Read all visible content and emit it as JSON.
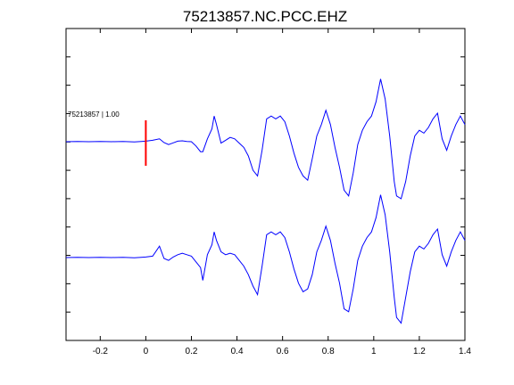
{
  "chart_data": {
    "type": "line",
    "title": "75213857.NC.PCC.EHZ",
    "xlabel": "",
    "ylabel": "",
    "xlim": [
      -0.35,
      1.4
    ],
    "x_ticks": [
      "-0.2",
      "0",
      "0.2",
      "0.4",
      "0.6",
      "0.8",
      "1",
      "1.2",
      "1.4"
    ],
    "x_tick_values": [
      -0.2,
      0,
      0.2,
      0.4,
      0.6,
      0.8,
      1.0,
      1.2,
      1.4
    ],
    "grid": false,
    "trace_label": "75213857 | 1.00",
    "pick_time": 0,
    "line_color": "#0000ff",
    "pick_color": "#ff0000",
    "traces": [
      {
        "x": [
          -0.35,
          -0.3,
          -0.25,
          -0.2,
          -0.15,
          -0.1,
          -0.05,
          -0.02,
          0,
          0.03,
          0.06,
          0.08,
          0.1,
          0.12,
          0.14,
          0.16,
          0.18,
          0.2,
          0.22,
          0.24,
          0.25,
          0.27,
          0.29,
          0.3,
          0.31,
          0.33,
          0.35,
          0.37,
          0.39,
          0.41,
          0.43,
          0.45,
          0.47,
          0.49,
          0.51,
          0.53,
          0.55,
          0.57,
          0.59,
          0.61,
          0.63,
          0.65,
          0.67,
          0.69,
          0.71,
          0.73,
          0.75,
          0.77,
          0.79,
          0.81,
          0.83,
          0.85,
          0.87,
          0.89,
          0.91,
          0.93,
          0.95,
          0.97,
          0.99,
          1.01,
          1.03,
          1.05,
          1.07,
          1.09,
          1.1,
          1.12,
          1.14,
          1.16,
          1.18,
          1.2,
          1.22,
          1.24,
          1.26,
          1.28,
          1.3,
          1.32,
          1.34,
          1.36,
          1.38,
          1.4
        ],
        "y": [
          0,
          0.01,
          0,
          0.01,
          0,
          0.01,
          -0.01,
          0.01,
          0.02,
          0.05,
          0.1,
          -0.03,
          -0.1,
          -0.04,
          0.02,
          0.03,
          0.01,
          0,
          -0.15,
          -0.35,
          -0.35,
          0.1,
          0.45,
          0.9,
          0.6,
          -0.05,
          0.05,
          0.15,
          0.1,
          -0.05,
          -0.2,
          -0.5,
          -1.0,
          -1.2,
          -0.3,
          0.8,
          0.9,
          0.8,
          0.9,
          0.7,
          0.2,
          -0.4,
          -0.9,
          -1.2,
          -1.35,
          -0.6,
          0.2,
          0.6,
          1.1,
          0.6,
          -0.2,
          -0.9,
          -1.7,
          -1.9,
          -1.1,
          -0.1,
          0.4,
          0.7,
          0.9,
          1.4,
          2.2,
          1.5,
          0.2,
          -1.4,
          -1.9,
          -2.0,
          -1.4,
          -0.5,
          0.2,
          0.4,
          0.3,
          0.5,
          0.8,
          1.0,
          0.1,
          -0.3,
          0.2,
          0.6,
          0.9,
          0.6
        ]
      },
      {
        "x": [
          -0.35,
          -0.3,
          -0.25,
          -0.2,
          -0.15,
          -0.1,
          -0.05,
          -0.02,
          0,
          0.03,
          0.06,
          0.08,
          0.1,
          0.12,
          0.14,
          0.16,
          0.18,
          0.2,
          0.22,
          0.24,
          0.25,
          0.27,
          0.29,
          0.3,
          0.31,
          0.33,
          0.35,
          0.37,
          0.39,
          0.41,
          0.43,
          0.45,
          0.47,
          0.49,
          0.51,
          0.53,
          0.55,
          0.57,
          0.59,
          0.61,
          0.63,
          0.65,
          0.67,
          0.69,
          0.71,
          0.73,
          0.75,
          0.77,
          0.79,
          0.81,
          0.83,
          0.85,
          0.87,
          0.89,
          0.91,
          0.93,
          0.95,
          0.97,
          0.99,
          1.01,
          1.03,
          1.05,
          1.07,
          1.09,
          1.1,
          1.12,
          1.14,
          1.16,
          1.18,
          1.2,
          1.22,
          1.24,
          1.26,
          1.28,
          1.3,
          1.32,
          1.34,
          1.36,
          1.38,
          1.4
        ],
        "y": [
          0,
          0.01,
          0,
          0.01,
          0,
          0.01,
          -0.01,
          0.01,
          0.02,
          0.05,
          0.4,
          -0.03,
          -0.1,
          0.02,
          0.1,
          0.15,
          0.1,
          0.05,
          -0.15,
          -0.35,
          -0.8,
          0.1,
          0.45,
          0.9,
          0.6,
          0.2,
          0.1,
          0.15,
          0.1,
          -0.1,
          -0.3,
          -0.6,
          -1.0,
          -1.3,
          -0.3,
          0.8,
          0.9,
          0.8,
          0.9,
          0.7,
          0.2,
          -0.4,
          -0.9,
          -1.2,
          -1.1,
          -0.6,
          0.2,
          0.6,
          1.1,
          0.6,
          -0.2,
          -0.9,
          -1.8,
          -1.9,
          -1.1,
          -0.1,
          0.4,
          0.7,
          0.9,
          1.4,
          2.2,
          1.5,
          0.2,
          -1.4,
          -2.1,
          -2.3,
          -1.4,
          -0.5,
          0.2,
          0.4,
          0.3,
          0.5,
          0.8,
          1.0,
          0.1,
          -0.3,
          0.2,
          0.6,
          0.9,
          0.6
        ]
      }
    ]
  }
}
